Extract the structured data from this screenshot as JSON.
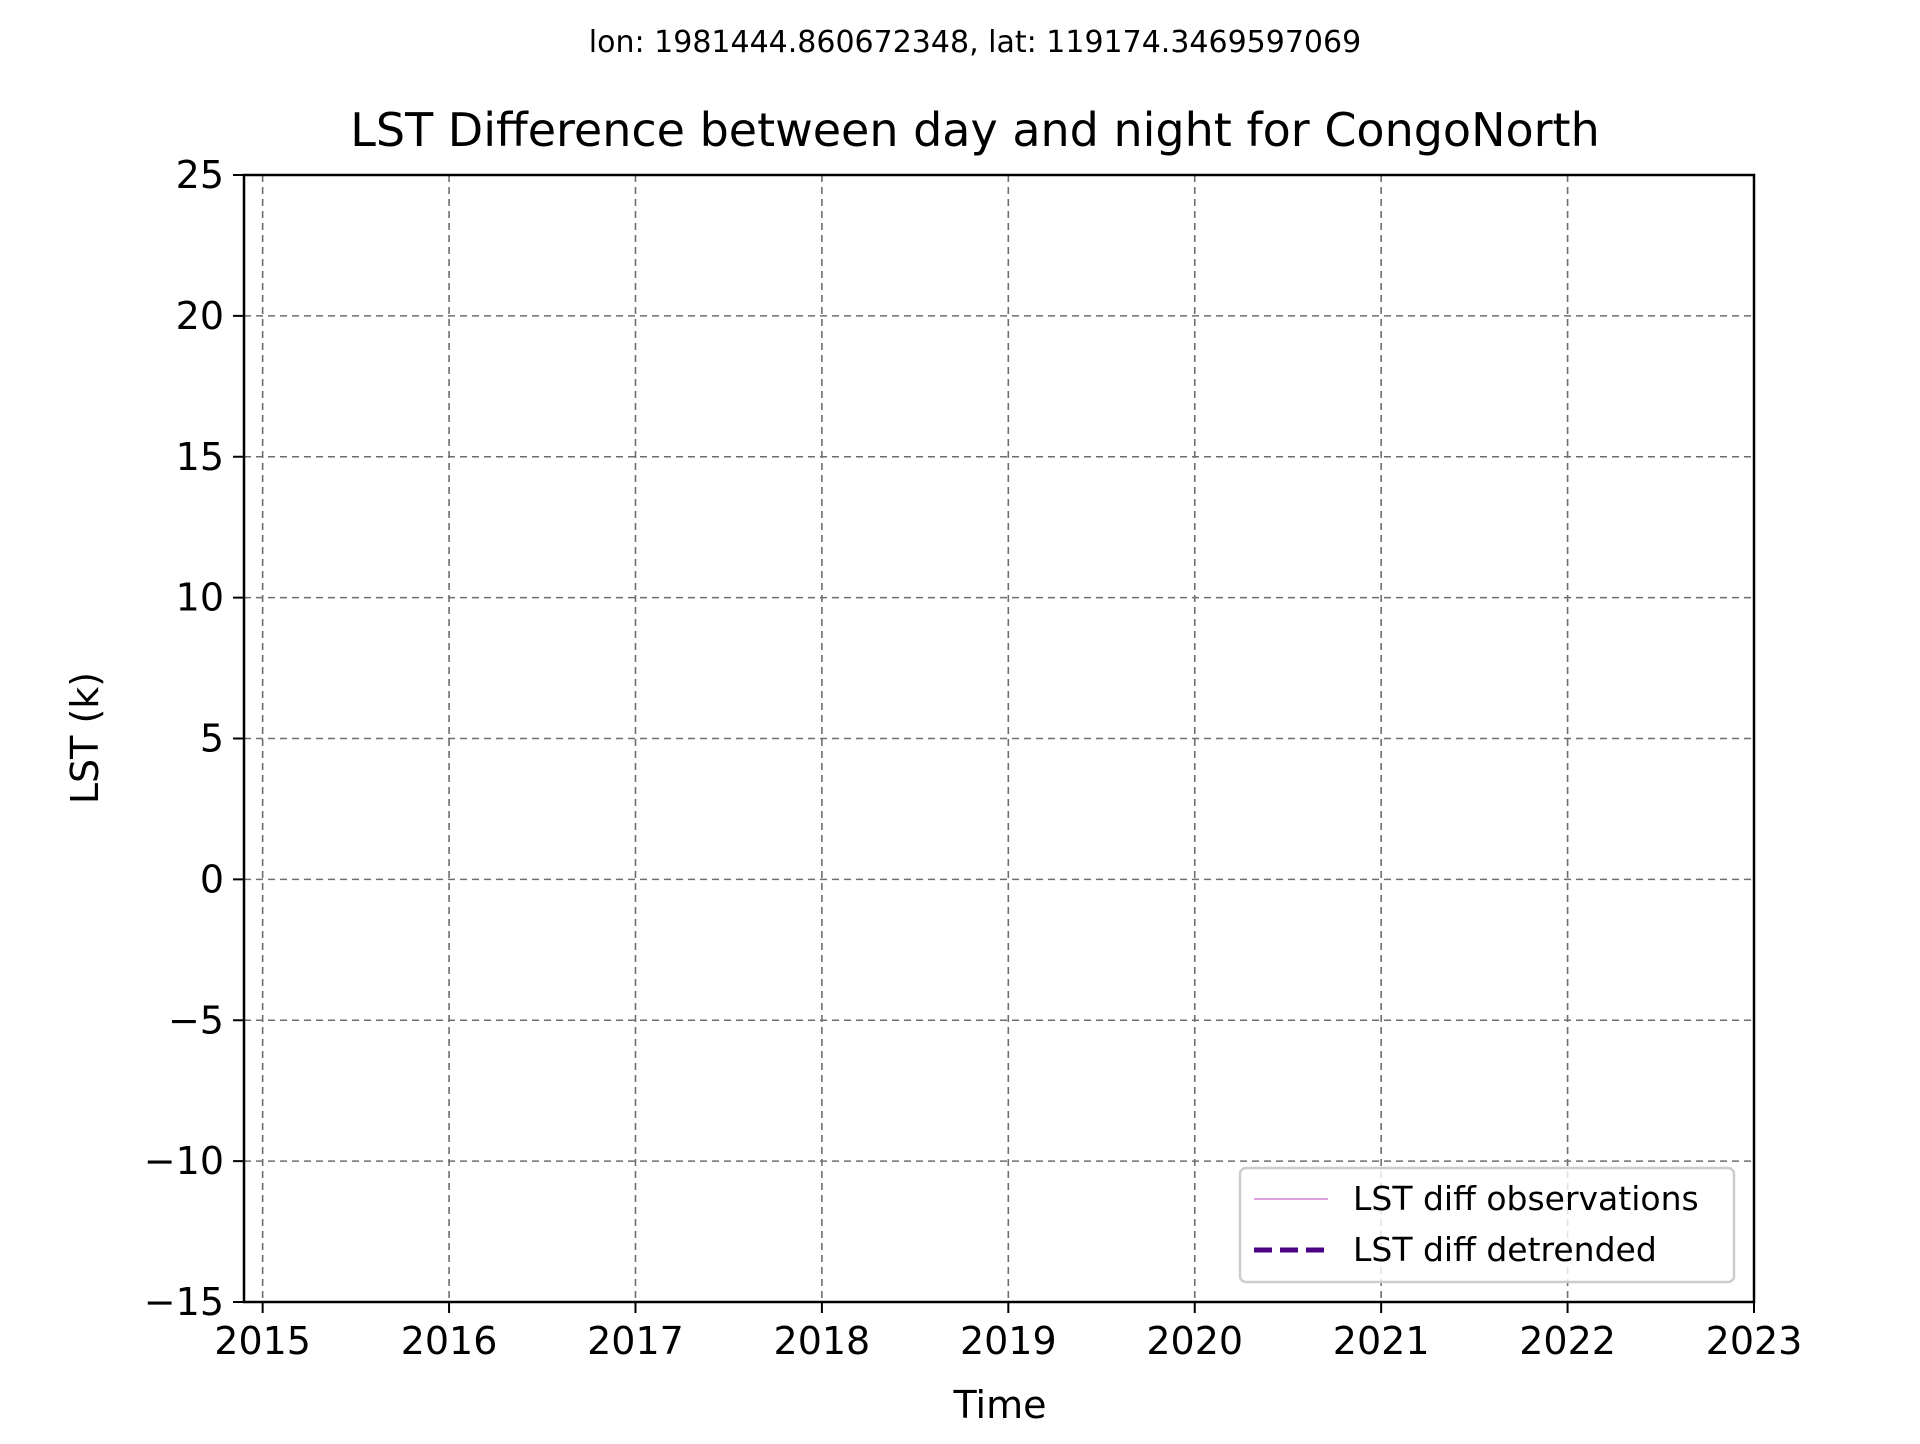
{
  "chart_data": {
    "type": "line",
    "suptitle": "lon: 1981444.860672348, lat: 119174.3469597069",
    "title": "LST Difference between day and night for CongoNorth",
    "xlabel": "Time",
    "ylabel": "LST (k)",
    "xlim": [
      2014.9,
      2023
    ],
    "ylim": [
      -15,
      25
    ],
    "x_ticks": [
      2015,
      2016,
      2017,
      2018,
      2019,
      2020,
      2021,
      2022,
      2023
    ],
    "x_tick_labels": [
      "2015",
      "2016",
      "2017",
      "2018",
      "2019",
      "2020",
      "2021",
      "2022",
      "2023"
    ],
    "y_ticks": [
      -15,
      -10,
      -5,
      0,
      5,
      10,
      15,
      20,
      25
    ],
    "y_tick_labels": [
      "−15",
      "−10",
      "−5",
      "0",
      "5",
      "10",
      "15",
      "20",
      "25"
    ],
    "grid": true,
    "grid_style": "dashed",
    "legend_position": "lower-right",
    "series": [
      {
        "name": "LST diff observations",
        "color": "#DDA0DD",
        "style": "solid",
        "x": [],
        "values": []
      },
      {
        "name": "LST diff detrended",
        "color": "#4B0082",
        "style": "dashed",
        "x": [],
        "values": []
      }
    ]
  }
}
